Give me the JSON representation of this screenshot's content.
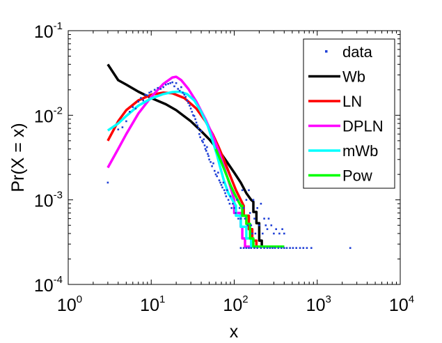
{
  "chart_data": {
    "type": "line",
    "title": "",
    "xlabel": "x",
    "ylabel": "Pr(X = x)",
    "xscale": "log",
    "yscale": "log",
    "xlim": [
      1,
      10000
    ],
    "ylim": [
      0.0001,
      0.1
    ],
    "x_ticks": [
      {
        "value": 1,
        "base": "10",
        "exp": "0"
      },
      {
        "value": 10,
        "base": "10",
        "exp": "1"
      },
      {
        "value": 100,
        "base": "10",
        "exp": "2"
      },
      {
        "value": 1000,
        "base": "10",
        "exp": "3"
      },
      {
        "value": 10000,
        "base": "10",
        "exp": "4"
      }
    ],
    "y_ticks": [
      {
        "value": 0.0001,
        "base": "10",
        "exp": "-4"
      },
      {
        "value": 0.001,
        "base": "10",
        "exp": "-3"
      },
      {
        "value": 0.01,
        "base": "10",
        "exp": "-2"
      },
      {
        "value": 0.1,
        "base": "10",
        "exp": "-1"
      }
    ],
    "legend_position": "top-right",
    "scatter": {
      "name": "data",
      "color": "#1f3fd6",
      "points": [
        [
          3,
          0.0016
        ],
        [
          4,
          0.0068
        ],
        [
          4.5,
          0.0072
        ],
        [
          5,
          0.0085
        ],
        [
          5.5,
          0.011
        ],
        [
          6,
          0.0125
        ],
        [
          6.5,
          0.012
        ],
        [
          7,
          0.0145
        ],
        [
          7.5,
          0.016
        ],
        [
          8,
          0.015
        ],
        [
          8.5,
          0.0175
        ],
        [
          9,
          0.0172
        ],
        [
          9.5,
          0.0185
        ],
        [
          10,
          0.019
        ],
        [
          11,
          0.02
        ],
        [
          12,
          0.021
        ],
        [
          13,
          0.0205
        ],
        [
          14,
          0.0215
        ],
        [
          15,
          0.023
        ],
        [
          16,
          0.0235
        ],
        [
          17,
          0.024
        ],
        [
          18,
          0.0245
        ],
        [
          19,
          0.022
        ],
        [
          20,
          0.024
        ],
        [
          21,
          0.0205
        ],
        [
          22,
          0.0195
        ],
        [
          23,
          0.0215
        ],
        [
          24,
          0.0185
        ],
        [
          25,
          0.0175
        ],
        [
          26,
          0.0165
        ],
        [
          27,
          0.015
        ],
        [
          28,
          0.014
        ],
        [
          29,
          0.013
        ],
        [
          30,
          0.012
        ],
        [
          31,
          0.011
        ],
        [
          32,
          0.01
        ],
        [
          33,
          0.0098
        ],
        [
          34,
          0.009
        ],
        [
          35,
          0.0082
        ],
        [
          36,
          0.0076
        ],
        [
          37,
          0.007
        ],
        [
          38,
          0.006
        ],
        [
          39,
          0.0055
        ],
        [
          40,
          0.0065
        ],
        [
          41,
          0.005
        ],
        [
          42,
          0.0048
        ],
        [
          43,
          0.0052
        ],
        [
          44,
          0.0044
        ],
        [
          45,
          0.004
        ],
        [
          46,
          0.0038
        ],
        [
          47,
          0.0042
        ],
        [
          48,
          0.0035
        ],
        [
          49,
          0.0033
        ],
        [
          50,
          0.003
        ],
        [
          52,
          0.0028
        ],
        [
          54,
          0.0025
        ],
        [
          56,
          0.0027
        ],
        [
          58,
          0.0022
        ],
        [
          60,
          0.002
        ],
        [
          62,
          0.0019
        ],
        [
          64,
          0.0021
        ],
        [
          66,
          0.0017
        ],
        [
          68,
          0.0016
        ],
        [
          70,
          0.0015
        ],
        [
          72,
          0.0014
        ],
        [
          74,
          0.0016
        ],
        [
          76,
          0.0013
        ],
        [
          78,
          0.0012
        ],
        [
          80,
          0.0011
        ],
        [
          82,
          0.0013
        ],
        [
          85,
          0.001
        ],
        [
          88,
          0.0009
        ],
        [
          90,
          0.0011
        ],
        [
          93,
          0.0008
        ],
        [
          96,
          0.0009
        ],
        [
          100,
          0.0008
        ],
        [
          104,
          0.0007
        ],
        [
          108,
          0.001
        ],
        [
          112,
          0.0006
        ],
        [
          116,
          0.0008
        ],
        [
          120,
          0.0006
        ],
        [
          125,
          0.0013
        ],
        [
          130,
          0.0008
        ],
        [
          135,
          0.0006
        ],
        [
          140,
          0.001
        ],
        [
          145,
          0.0005
        ],
        [
          150,
          0.0013
        ],
        [
          155,
          0.0007
        ],
        [
          160,
          0.0005
        ],
        [
          165,
          0.0004
        ],
        [
          170,
          0.001
        ],
        [
          175,
          0.0006
        ],
        [
          180,
          0.0004
        ],
        [
          190,
          0.0008
        ],
        [
          200,
          0.0005
        ],
        [
          210,
          0.0009
        ],
        [
          220,
          0.0004
        ],
        [
          230,
          0.0006
        ],
        [
          240,
          0.0005
        ],
        [
          250,
          0.00045
        ],
        [
          260,
          0.0006
        ],
        [
          280,
          0.0005
        ],
        [
          300,
          0.0004
        ],
        [
          320,
          0.00045
        ],
        [
          350,
          0.0004
        ],
        [
          380,
          0.00045
        ],
        [
          400,
          0.0004
        ],
        [
          120,
          0.00027
        ],
        [
          130,
          0.00027
        ],
        [
          140,
          0.00027
        ],
        [
          150,
          0.00027
        ],
        [
          160,
          0.00027
        ],
        [
          175,
          0.00027
        ],
        [
          190,
          0.00027
        ],
        [
          210,
          0.00027
        ],
        [
          230,
          0.00027
        ],
        [
          250,
          0.00027
        ],
        [
          270,
          0.00027
        ],
        [
          290,
          0.00027
        ],
        [
          310,
          0.00027
        ],
        [
          340,
          0.00027
        ],
        [
          370,
          0.00027
        ],
        [
          400,
          0.00027
        ],
        [
          430,
          0.00027
        ],
        [
          470,
          0.00027
        ],
        [
          510,
          0.00027
        ],
        [
          560,
          0.00027
        ],
        [
          620,
          0.00027
        ],
        [
          680,
          0.00027
        ],
        [
          750,
          0.00027
        ],
        [
          850,
          0.00027
        ],
        [
          2500,
          0.00027
        ]
      ]
    },
    "series": [
      {
        "name": "Wb",
        "color": "#000000",
        "points": [
          [
            3,
            0.04
          ],
          [
            4,
            0.026
          ],
          [
            5,
            0.023
          ],
          [
            7,
            0.019
          ],
          [
            10,
            0.016
          ],
          [
            15,
            0.0135
          ],
          [
            20,
            0.0115
          ],
          [
            30,
            0.0085
          ],
          [
            40,
            0.0065
          ],
          [
            50,
            0.0052
          ],
          [
            60,
            0.0042
          ],
          [
            70,
            0.0035
          ],
          [
            80,
            0.0029
          ],
          [
            100,
            0.0021
          ],
          [
            120,
            0.0016
          ],
          [
            140,
            0.0012
          ],
          [
            160,
            0.001
          ],
          [
            170,
            0.00095
          ],
          [
            170,
            0.00072
          ],
          [
            185,
            0.00072
          ],
          [
            185,
            0.00053
          ],
          [
            200,
            0.00053
          ],
          [
            200,
            0.00033
          ],
          [
            215,
            0.00033
          ],
          [
            215,
            0.00028
          ],
          [
            400,
            0.00028
          ]
        ]
      },
      {
        "name": "LN",
        "color": "#ff0000",
        "points": [
          [
            3,
            0.005
          ],
          [
            4,
            0.0085
          ],
          [
            5,
            0.0115
          ],
          [
            7,
            0.015
          ],
          [
            10,
            0.0175
          ],
          [
            14,
            0.0185
          ],
          [
            18,
            0.0182
          ],
          [
            25,
            0.016
          ],
          [
            35,
            0.012
          ],
          [
            45,
            0.0085
          ],
          [
            55,
            0.006
          ],
          [
            65,
            0.0042
          ],
          [
            75,
            0.003
          ],
          [
            90,
            0.0019
          ],
          [
            105,
            0.0013
          ],
          [
            120,
            0.001
          ],
          [
            130,
            0.00085
          ],
          [
            130,
            0.00065
          ],
          [
            150,
            0.00065
          ],
          [
            150,
            0.00045
          ],
          [
            165,
            0.00045
          ],
          [
            165,
            0.00033
          ],
          [
            185,
            0.00033
          ],
          [
            185,
            0.00028
          ],
          [
            400,
            0.00028
          ]
        ]
      },
      {
        "name": "DPLN",
        "color": "#ff00ff",
        "points": [
          [
            3,
            0.0024
          ],
          [
            4,
            0.004
          ],
          [
            5,
            0.006
          ],
          [
            7,
            0.0105
          ],
          [
            10,
            0.0165
          ],
          [
            14,
            0.0235
          ],
          [
            18,
            0.028
          ],
          [
            20,
            0.0285
          ],
          [
            23,
            0.026
          ],
          [
            28,
            0.0205
          ],
          [
            35,
            0.0145
          ],
          [
            45,
            0.009
          ],
          [
            55,
            0.0058
          ],
          [
            65,
            0.0038
          ],
          [
            75,
            0.0025
          ],
          [
            85,
            0.0017
          ],
          [
            95,
            0.0012
          ],
          [
            100,
            0.001
          ],
          [
            100,
            0.0007
          ],
          [
            120,
            0.0007
          ],
          [
            120,
            0.00048
          ],
          [
            125,
            0.00048
          ],
          [
            125,
            0.00035
          ],
          [
            135,
            0.00035
          ],
          [
            135,
            0.00028
          ],
          [
            400,
            0.00028
          ]
        ]
      },
      {
        "name": "mWb",
        "color": "#00ffff",
        "points": [
          [
            3,
            0.0066
          ],
          [
            4,
            0.008
          ],
          [
            5,
            0.0098
          ],
          [
            7,
            0.013
          ],
          [
            10,
            0.0158
          ],
          [
            14,
            0.0178
          ],
          [
            18,
            0.0188
          ],
          [
            22,
            0.019
          ],
          [
            27,
            0.0178
          ],
          [
            33,
            0.015
          ],
          [
            40,
            0.011
          ],
          [
            48,
            0.0075
          ],
          [
            55,
            0.005
          ],
          [
            62,
            0.0034
          ],
          [
            68,
            0.0024
          ],
          [
            75,
            0.0017
          ],
          [
            85,
            0.0012
          ],
          [
            95,
            0.001
          ],
          [
            105,
            0.00085
          ],
          [
            105,
            0.00065
          ],
          [
            120,
            0.00065
          ],
          [
            120,
            0.00048
          ],
          [
            140,
            0.00048
          ],
          [
            140,
            0.00035
          ],
          [
            160,
            0.00035
          ],
          [
            160,
            0.00028
          ],
          [
            400,
            0.00028
          ]
        ]
      },
      {
        "name": "Pow",
        "color": "#00ff00",
        "points": [
          [
            60,
            0.004
          ],
          [
            70,
            0.0028
          ],
          [
            80,
            0.002
          ],
          [
            90,
            0.0015
          ],
          [
            100,
            0.0012
          ],
          [
            110,
            0.001
          ],
          [
            120,
            0.00085
          ],
          [
            125,
            0.00085
          ],
          [
            125,
            0.00065
          ],
          [
            140,
            0.00065
          ],
          [
            140,
            0.00052
          ],
          [
            155,
            0.00052
          ],
          [
            155,
            0.00035
          ],
          [
            170,
            0.00035
          ],
          [
            170,
            0.00028
          ],
          [
            400,
            0.00028
          ]
        ]
      }
    ]
  }
}
